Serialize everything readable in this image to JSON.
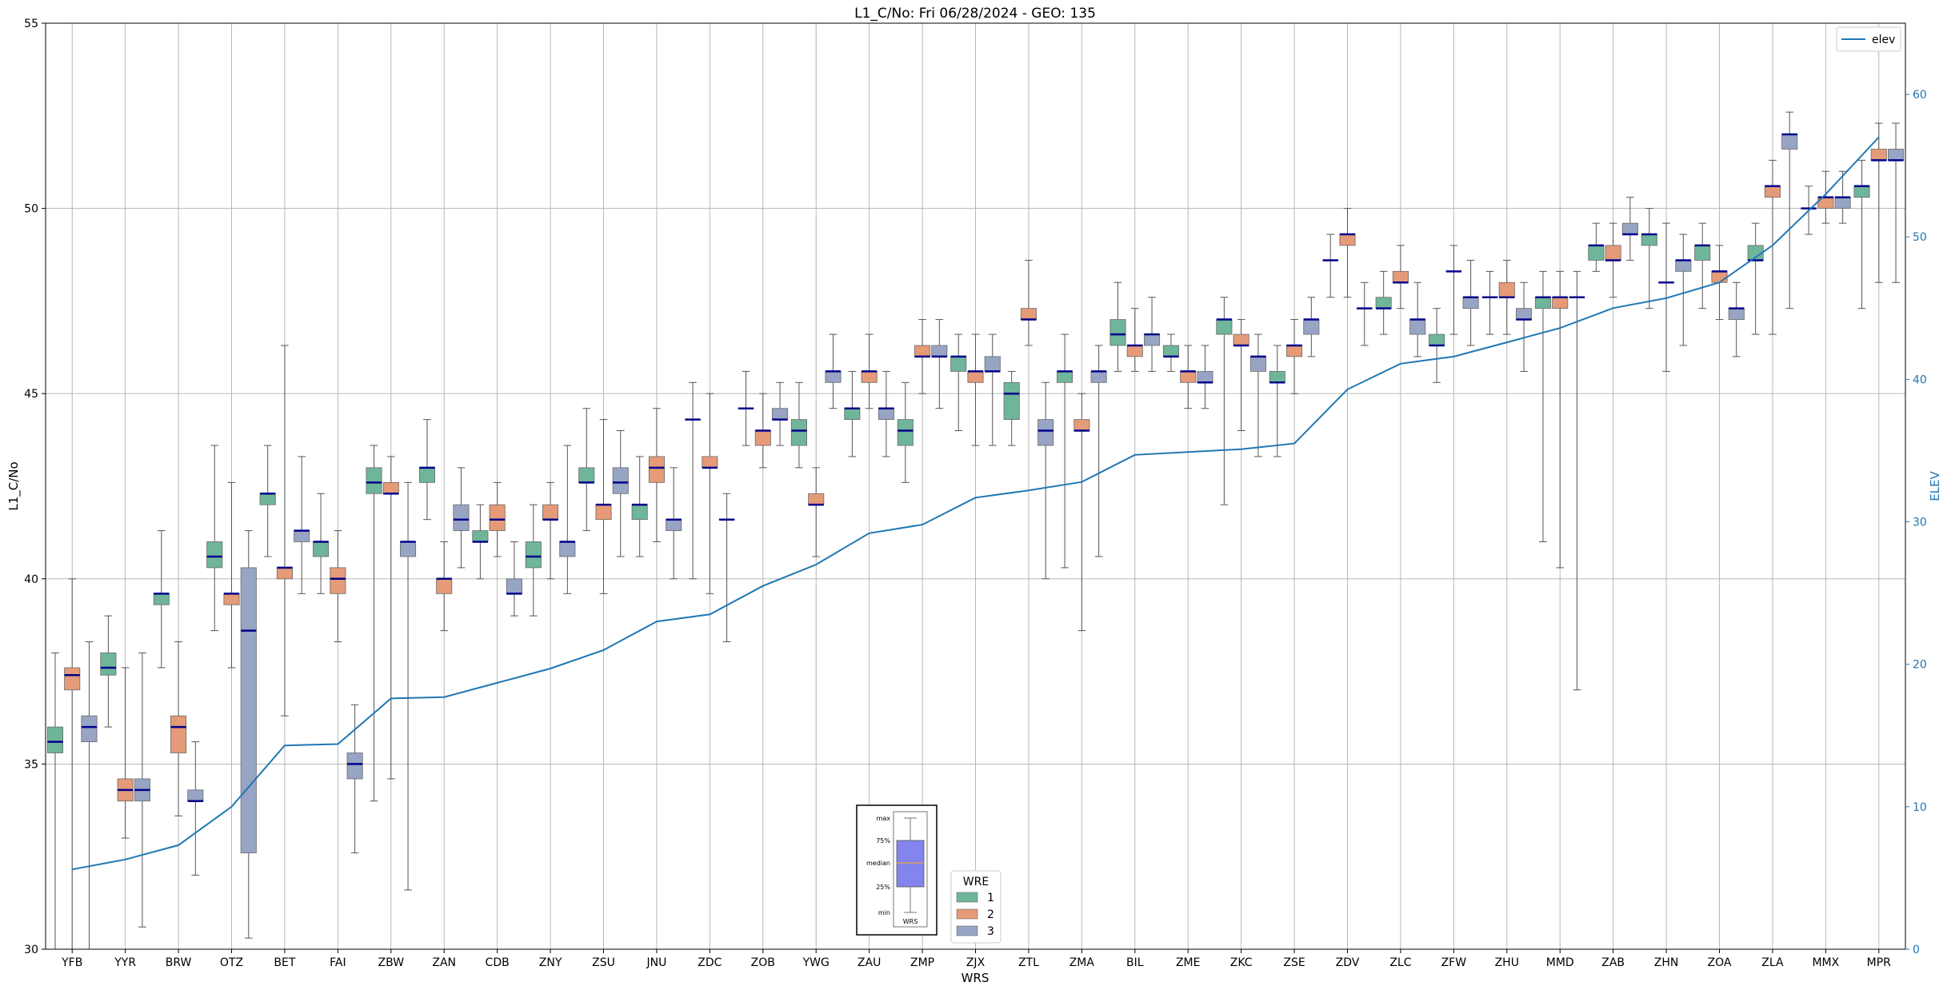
{
  "colors": {
    "wre_1": "#6fb59a",
    "wre_2": "#e59a78",
    "wre_3": "#97a4c4",
    "median": "#00008b",
    "elev_line": "#1f77b4",
    "grid": "#b0b0b0",
    "whisker": "#555555",
    "key_box": "#8484ee",
    "key_median": "#e8a040"
  },
  "chart_data": {
    "type": "box",
    "title": "L1_C/No: Fri 06/28/2024 - GEO: 135",
    "xlabel": "WRS",
    "ylabel": "L1_C/No",
    "y2label": "ELEV",
    "ylim": [
      30,
      55
    ],
    "y2lim": [
      0,
      65
    ],
    "yticks": [
      "30",
      "35",
      "40",
      "45",
      "50",
      "55"
    ],
    "y2ticks": [
      "0",
      "10",
      "20",
      "30",
      "40",
      "50",
      "60"
    ],
    "grid": true,
    "categories": [
      "YFB",
      "YYR",
      "BRW",
      "OTZ",
      "BET",
      "FAI",
      "ZBW",
      "ZAN",
      "CDB",
      "ZNY",
      "ZSU",
      "JNU",
      "ZDC",
      "ZOB",
      "YWG",
      "ZAU",
      "ZMP",
      "ZJX",
      "ZTL",
      "ZMA",
      "BIL",
      "ZME",
      "ZKC",
      "ZSE",
      "ZDV",
      "ZLC",
      "ZFW",
      "ZHU",
      "MMD",
      "ZAB",
      "ZHN",
      "ZOA",
      "ZLA",
      "MMX",
      "MPR"
    ],
    "box_legend": {
      "title": "WRE",
      "entries": [
        "1",
        "2",
        "3"
      ],
      "placement": "bottom-center"
    },
    "line_legend": {
      "entries": [
        "elev"
      ],
      "placement": "top-right"
    },
    "box_key": {
      "labels": [
        "max",
        "75%",
        "median",
        "25%",
        "min",
        "WRS"
      ]
    },
    "elev": [
      5.6,
      6.3,
      7.3,
      10.0,
      14.3,
      14.4,
      17.6,
      17.7,
      18.7,
      19.7,
      21.0,
      23.0,
      23.5,
      25.5,
      27.0,
      29.2,
      29.8,
      31.7,
      32.2,
      32.8,
      34.7,
      34.9,
      35.1,
      35.5,
      39.3,
      41.1,
      41.6,
      42.6,
      43.6,
      45.0,
      45.7,
      46.8,
      49.4,
      53.0,
      57.0
    ],
    "boxes": [
      {
        "wrs": "YFB",
        "wre": 1,
        "min": 30.0,
        "q1": 35.3,
        "median": 35.6,
        "q3": 36.0,
        "max": 38.0
      },
      {
        "wrs": "YFB",
        "wre": 2,
        "min": 30.0,
        "q1": 37.0,
        "median": 37.4,
        "q3": 37.6,
        "max": 40.0
      },
      {
        "wrs": "YFB",
        "wre": 3,
        "min": 30.0,
        "q1": 35.6,
        "median": 36.0,
        "q3": 36.3,
        "max": 38.3
      },
      {
        "wrs": "YYR",
        "wre": 1,
        "min": 36.0,
        "q1": 37.4,
        "median": 37.6,
        "q3": 38.0,
        "max": 39.0
      },
      {
        "wrs": "YYR",
        "wre": 2,
        "min": 33.0,
        "q1": 34.0,
        "median": 34.3,
        "q3": 34.6,
        "max": 37.6
      },
      {
        "wrs": "YYR",
        "wre": 3,
        "min": 30.6,
        "q1": 34.0,
        "median": 34.3,
        "q3": 34.6,
        "max": 38.0
      },
      {
        "wrs": "BRW",
        "wre": 1,
        "min": 37.6,
        "q1": 39.3,
        "median": 39.6,
        "q3": 39.6,
        "max": 41.3
      },
      {
        "wrs": "BRW",
        "wre": 2,
        "min": 33.6,
        "q1": 35.3,
        "median": 36.0,
        "q3": 36.3,
        "max": 38.3
      },
      {
        "wrs": "BRW",
        "wre": 3,
        "min": 32.0,
        "q1": 34.0,
        "median": 34.0,
        "q3": 34.3,
        "max": 35.6
      },
      {
        "wrs": "OTZ",
        "wre": 1,
        "min": 38.6,
        "q1": 40.3,
        "median": 40.6,
        "q3": 41.0,
        "max": 43.6
      },
      {
        "wrs": "OTZ",
        "wre": 2,
        "min": 37.6,
        "q1": 39.3,
        "median": 39.6,
        "q3": 39.6,
        "max": 42.6
      },
      {
        "wrs": "OTZ",
        "wre": 3,
        "min": 30.3,
        "q1": 32.6,
        "median": 38.6,
        "q3": 40.3,
        "max": 41.3
      },
      {
        "wrs": "BET",
        "wre": 1,
        "min": 40.6,
        "q1": 42.0,
        "median": 42.3,
        "q3": 42.3,
        "max": 43.6
      },
      {
        "wrs": "BET",
        "wre": 2,
        "min": 36.3,
        "q1": 40.0,
        "median": 40.3,
        "q3": 40.3,
        "max": 46.3
      },
      {
        "wrs": "BET",
        "wre": 3,
        "min": 39.6,
        "q1": 41.0,
        "median": 41.3,
        "q3": 41.3,
        "max": 43.3
      },
      {
        "wrs": "FAI",
        "wre": 1,
        "min": 39.6,
        "q1": 40.6,
        "median": 41.0,
        "q3": 41.0,
        "max": 42.3
      },
      {
        "wrs": "FAI",
        "wre": 2,
        "min": 38.3,
        "q1": 39.6,
        "median": 40.0,
        "q3": 40.3,
        "max": 41.3
      },
      {
        "wrs": "FAI",
        "wre": 3,
        "min": 32.6,
        "q1": 34.6,
        "median": 35.0,
        "q3": 35.3,
        "max": 36.6
      },
      {
        "wrs": "ZBW",
        "wre": 1,
        "min": 34.0,
        "q1": 42.3,
        "median": 42.6,
        "q3": 43.0,
        "max": 43.6
      },
      {
        "wrs": "ZBW",
        "wre": 2,
        "min": 34.6,
        "q1": 42.3,
        "median": 42.3,
        "q3": 42.6,
        "max": 43.3
      },
      {
        "wrs": "ZBW",
        "wre": 3,
        "min": 31.6,
        "q1": 40.6,
        "median": 41.0,
        "q3": 41.0,
        "max": 42.6
      },
      {
        "wrs": "ZAN",
        "wre": 1,
        "min": 41.6,
        "q1": 42.6,
        "median": 43.0,
        "q3": 43.0,
        "max": 44.3
      },
      {
        "wrs": "ZAN",
        "wre": 2,
        "min": 38.6,
        "q1": 39.6,
        "median": 40.0,
        "q3": 40.0,
        "max": 41.0
      },
      {
        "wrs": "ZAN",
        "wre": 3,
        "min": 40.3,
        "q1": 41.3,
        "median": 41.6,
        "q3": 42.0,
        "max": 43.0
      },
      {
        "wrs": "CDB",
        "wre": 1,
        "min": 40.0,
        "q1": 41.0,
        "median": 41.0,
        "q3": 41.3,
        "max": 42.0
      },
      {
        "wrs": "CDB",
        "wre": 2,
        "min": 40.6,
        "q1": 41.3,
        "median": 41.6,
        "q3": 42.0,
        "max": 42.6
      },
      {
        "wrs": "CDB",
        "wre": 3,
        "min": 39.0,
        "q1": 39.6,
        "median": 39.6,
        "q3": 40.0,
        "max": 41.0
      },
      {
        "wrs": "ZNY",
        "wre": 1,
        "min": 39.0,
        "q1": 40.3,
        "median": 40.6,
        "q3": 41.0,
        "max": 42.0
      },
      {
        "wrs": "ZNY",
        "wre": 2,
        "min": 40.0,
        "q1": 41.6,
        "median": 41.6,
        "q3": 42.0,
        "max": 42.6
      },
      {
        "wrs": "ZNY",
        "wre": 3,
        "min": 39.6,
        "q1": 40.6,
        "median": 41.0,
        "q3": 41.0,
        "max": 43.6
      },
      {
        "wrs": "ZSU",
        "wre": 1,
        "min": 41.3,
        "q1": 42.6,
        "median": 42.6,
        "q3": 43.0,
        "max": 44.6
      },
      {
        "wrs": "ZSU",
        "wre": 2,
        "min": 39.6,
        "q1": 41.6,
        "median": 42.0,
        "q3": 42.0,
        "max": 44.3
      },
      {
        "wrs": "ZSU",
        "wre": 3,
        "min": 40.6,
        "q1": 42.3,
        "median": 42.6,
        "q3": 43.0,
        "max": 44.0
      },
      {
        "wrs": "JNU",
        "wre": 1,
        "min": 40.6,
        "q1": 41.6,
        "median": 42.0,
        "q3": 42.0,
        "max": 43.3
      },
      {
        "wrs": "JNU",
        "wre": 2,
        "min": 41.0,
        "q1": 42.6,
        "median": 43.0,
        "q3": 43.3,
        "max": 44.6
      },
      {
        "wrs": "JNU",
        "wre": 3,
        "min": 40.0,
        "q1": 41.3,
        "median": 41.6,
        "q3": 41.6,
        "max": 43.0
      },
      {
        "wrs": "ZDC",
        "wre": 1,
        "min": 40.0,
        "q1": 44.3,
        "median": 44.3,
        "q3": 44.3,
        "max": 45.3
      },
      {
        "wrs": "ZDC",
        "wre": 2,
        "min": 39.6,
        "q1": 43.0,
        "median": 43.0,
        "q3": 43.3,
        "max": 45.0
      },
      {
        "wrs": "ZDC",
        "wre": 3,
        "min": 38.3,
        "q1": 41.6,
        "median": 41.6,
        "q3": 41.6,
        "max": 42.3
      },
      {
        "wrs": "ZOB",
        "wre": 1,
        "min": 43.6,
        "q1": 44.6,
        "median": 44.6,
        "q3": 44.6,
        "max": 45.6
      },
      {
        "wrs": "ZOB",
        "wre": 2,
        "min": 43.0,
        "q1": 43.6,
        "median": 44.0,
        "q3": 44.0,
        "max": 45.0
      },
      {
        "wrs": "ZOB",
        "wre": 3,
        "min": 43.6,
        "q1": 44.3,
        "median": 44.3,
        "q3": 44.6,
        "max": 45.3
      },
      {
        "wrs": "YWG",
        "wre": 1,
        "min": 43.0,
        "q1": 43.6,
        "median": 44.0,
        "q3": 44.3,
        "max": 45.3
      },
      {
        "wrs": "YWG",
        "wre": 2,
        "min": 40.6,
        "q1": 42.0,
        "median": 42.0,
        "q3": 42.3,
        "max": 43.0
      },
      {
        "wrs": "YWG",
        "wre": 3,
        "min": 44.6,
        "q1": 45.3,
        "median": 45.6,
        "q3": 45.6,
        "max": 46.6
      },
      {
        "wrs": "ZAU",
        "wre": 1,
        "min": 43.3,
        "q1": 44.3,
        "median": 44.6,
        "q3": 44.6,
        "max": 45.6
      },
      {
        "wrs": "ZAU",
        "wre": 2,
        "min": 44.6,
        "q1": 45.3,
        "median": 45.6,
        "q3": 45.6,
        "max": 46.6
      },
      {
        "wrs": "ZAU",
        "wre": 3,
        "min": 43.3,
        "q1": 44.3,
        "median": 44.6,
        "q3": 44.6,
        "max": 45.6
      },
      {
        "wrs": "ZMP",
        "wre": 1,
        "min": 42.6,
        "q1": 43.6,
        "median": 44.0,
        "q3": 44.3,
        "max": 45.3
      },
      {
        "wrs": "ZMP",
        "wre": 2,
        "min": 45.0,
        "q1": 46.0,
        "median": 46.0,
        "q3": 46.3,
        "max": 47.0
      },
      {
        "wrs": "ZMP",
        "wre": 3,
        "min": 44.6,
        "q1": 46.0,
        "median": 46.0,
        "q3": 46.3,
        "max": 47.0
      },
      {
        "wrs": "ZJX",
        "wre": 1,
        "min": 44.0,
        "q1": 45.6,
        "median": 46.0,
        "q3": 46.0,
        "max": 46.6
      },
      {
        "wrs": "ZJX",
        "wre": 2,
        "min": 43.6,
        "q1": 45.3,
        "median": 45.6,
        "q3": 45.6,
        "max": 46.6
      },
      {
        "wrs": "ZJX",
        "wre": 3,
        "min": 43.6,
        "q1": 45.6,
        "median": 45.6,
        "q3": 46.0,
        "max": 46.6
      },
      {
        "wrs": "ZTL",
        "wre": 1,
        "min": 43.6,
        "q1": 44.3,
        "median": 45.0,
        "q3": 45.3,
        "max": 45.6
      },
      {
        "wrs": "ZTL",
        "wre": 2,
        "min": 46.3,
        "q1": 47.0,
        "median": 47.0,
        "q3": 47.3,
        "max": 48.6
      },
      {
        "wrs": "ZTL",
        "wre": 3,
        "min": 40.0,
        "q1": 43.6,
        "median": 44.0,
        "q3": 44.3,
        "max": 45.3
      },
      {
        "wrs": "ZMA",
        "wre": 1,
        "min": 40.3,
        "q1": 45.3,
        "median": 45.6,
        "q3": 45.6,
        "max": 46.6
      },
      {
        "wrs": "ZMA",
        "wre": 2,
        "min": 38.6,
        "q1": 44.0,
        "median": 44.0,
        "q3": 44.3,
        "max": 45.0
      },
      {
        "wrs": "ZMA",
        "wre": 3,
        "min": 40.6,
        "q1": 45.3,
        "median": 45.6,
        "q3": 45.6,
        "max": 46.3
      },
      {
        "wrs": "BIL",
        "wre": 1,
        "min": 45.6,
        "q1": 46.3,
        "median": 46.6,
        "q3": 47.0,
        "max": 48.0
      },
      {
        "wrs": "BIL",
        "wre": 2,
        "min": 45.6,
        "q1": 46.0,
        "median": 46.3,
        "q3": 46.3,
        "max": 47.3
      },
      {
        "wrs": "BIL",
        "wre": 3,
        "min": 45.6,
        "q1": 46.3,
        "median": 46.6,
        "q3": 46.6,
        "max": 47.6
      },
      {
        "wrs": "ZME",
        "wre": 1,
        "min": 45.6,
        "q1": 46.0,
        "median": 46.0,
        "q3": 46.3,
        "max": 46.6
      },
      {
        "wrs": "ZME",
        "wre": 2,
        "min": 44.6,
        "q1": 45.3,
        "median": 45.6,
        "q3": 45.6,
        "max": 46.3
      },
      {
        "wrs": "ZME",
        "wre": 3,
        "min": 44.6,
        "q1": 45.3,
        "median": 45.3,
        "q3": 45.6,
        "max": 46.3
      },
      {
        "wrs": "ZKC",
        "wre": 1,
        "min": 42.0,
        "q1": 46.6,
        "median": 47.0,
        "q3": 47.0,
        "max": 47.6
      },
      {
        "wrs": "ZKC",
        "wre": 2,
        "min": 44.0,
        "q1": 46.3,
        "median": 46.3,
        "q3": 46.6,
        "max": 47.0
      },
      {
        "wrs": "ZKC",
        "wre": 3,
        "min": 43.3,
        "q1": 45.6,
        "median": 46.0,
        "q3": 46.0,
        "max": 46.6
      },
      {
        "wrs": "ZSE",
        "wre": 1,
        "min": 43.3,
        "q1": 45.3,
        "median": 45.3,
        "q3": 45.6,
        "max": 46.3
      },
      {
        "wrs": "ZSE",
        "wre": 2,
        "min": 45.0,
        "q1": 46.0,
        "median": 46.3,
        "q3": 46.3,
        "max": 47.0
      },
      {
        "wrs": "ZSE",
        "wre": 3,
        "min": 46.0,
        "q1": 46.6,
        "median": 47.0,
        "q3": 47.0,
        "max": 47.6
      },
      {
        "wrs": "ZDV",
        "wre": 1,
        "min": 47.6,
        "q1": 48.6,
        "median": 48.6,
        "q3": 48.6,
        "max": 49.3
      },
      {
        "wrs": "ZDV",
        "wre": 2,
        "min": 47.6,
        "q1": 49.0,
        "median": 49.3,
        "q3": 49.3,
        "max": 50.0
      },
      {
        "wrs": "ZDV",
        "wre": 3,
        "min": 46.3,
        "q1": 47.3,
        "median": 47.3,
        "q3": 47.3,
        "max": 48.0
      },
      {
        "wrs": "ZLC",
        "wre": 1,
        "min": 46.6,
        "q1": 47.3,
        "median": 47.3,
        "q3": 47.6,
        "max": 48.3
      },
      {
        "wrs": "ZLC",
        "wre": 2,
        "min": 47.3,
        "q1": 48.0,
        "median": 48.0,
        "q3": 48.3,
        "max": 49.0
      },
      {
        "wrs": "ZLC",
        "wre": 3,
        "min": 46.0,
        "q1": 46.6,
        "median": 47.0,
        "q3": 47.0,
        "max": 48.0
      },
      {
        "wrs": "ZFW",
        "wre": 1,
        "min": 45.3,
        "q1": 46.3,
        "median": 46.3,
        "q3": 46.6,
        "max": 47.3
      },
      {
        "wrs": "ZFW",
        "wre": 2,
        "min": 46.6,
        "q1": 48.3,
        "median": 48.3,
        "q3": 48.3,
        "max": 49.0
      },
      {
        "wrs": "ZFW",
        "wre": 3,
        "min": 46.3,
        "q1": 47.3,
        "median": 47.6,
        "q3": 47.6,
        "max": 48.6
      },
      {
        "wrs": "ZHU",
        "wre": 1,
        "min": 46.6,
        "q1": 47.6,
        "median": 47.6,
        "q3": 47.6,
        "max": 48.3
      },
      {
        "wrs": "ZHU",
        "wre": 2,
        "min": 46.6,
        "q1": 47.6,
        "median": 47.6,
        "q3": 48.0,
        "max": 48.6
      },
      {
        "wrs": "ZHU",
        "wre": 3,
        "min": 45.6,
        "q1": 47.0,
        "median": 47.0,
        "q3": 47.3,
        "max": 48.0
      },
      {
        "wrs": "MMD",
        "wre": 1,
        "min": 41.0,
        "q1": 47.3,
        "median": 47.6,
        "q3": 47.6,
        "max": 48.3
      },
      {
        "wrs": "MMD",
        "wre": 2,
        "min": 40.3,
        "q1": 47.3,
        "median": 47.6,
        "q3": 47.6,
        "max": 48.3
      },
      {
        "wrs": "MMD",
        "wre": 3,
        "min": 37.0,
        "q1": 47.6,
        "median": 47.6,
        "q3": 47.6,
        "max": 48.3
      },
      {
        "wrs": "ZAB",
        "wre": 1,
        "min": 48.3,
        "q1": 48.6,
        "median": 49.0,
        "q3": 49.0,
        "max": 49.6
      },
      {
        "wrs": "ZAB",
        "wre": 2,
        "min": 47.6,
        "q1": 48.6,
        "median": 48.6,
        "q3": 49.0,
        "max": 49.6
      },
      {
        "wrs": "ZAB",
        "wre": 3,
        "min": 48.6,
        "q1": 49.3,
        "median": 49.3,
        "q3": 49.6,
        "max": 50.3
      },
      {
        "wrs": "ZHN",
        "wre": 1,
        "min": 47.3,
        "q1": 49.0,
        "median": 49.3,
        "q3": 49.3,
        "max": 50.0
      },
      {
        "wrs": "ZHN",
        "wre": 2,
        "min": 45.6,
        "q1": 48.0,
        "median": 48.0,
        "q3": 48.0,
        "max": 49.6
      },
      {
        "wrs": "ZHN",
        "wre": 3,
        "min": 46.3,
        "q1": 48.3,
        "median": 48.6,
        "q3": 48.6,
        "max": 49.3
      },
      {
        "wrs": "ZOA",
        "wre": 1,
        "min": 47.3,
        "q1": 48.6,
        "median": 49.0,
        "q3": 49.0,
        "max": 49.6
      },
      {
        "wrs": "ZOA",
        "wre": 2,
        "min": 47.0,
        "q1": 48.0,
        "median": 48.3,
        "q3": 48.3,
        "max": 49.0
      },
      {
        "wrs": "ZOA",
        "wre": 3,
        "min": 46.0,
        "q1": 47.0,
        "median": 47.3,
        "q3": 47.3,
        "max": 48.0
      },
      {
        "wrs": "ZLA",
        "wre": 1,
        "min": 46.6,
        "q1": 48.6,
        "median": 48.6,
        "q3": 49.0,
        "max": 49.6
      },
      {
        "wrs": "ZLA",
        "wre": 2,
        "min": 46.6,
        "q1": 50.3,
        "median": 50.6,
        "q3": 50.6,
        "max": 51.3
      },
      {
        "wrs": "ZLA",
        "wre": 3,
        "min": 47.3,
        "q1": 51.6,
        "median": 52.0,
        "q3": 52.0,
        "max": 52.6
      },
      {
        "wrs": "MMX",
        "wre": 1,
        "min": 49.3,
        "q1": 50.0,
        "median": 50.0,
        "q3": 50.0,
        "max": 50.6
      },
      {
        "wrs": "MMX",
        "wre": 2,
        "min": 49.6,
        "q1": 50.0,
        "median": 50.3,
        "q3": 50.3,
        "max": 51.0
      },
      {
        "wrs": "MMX",
        "wre": 3,
        "min": 49.6,
        "q1": 50.0,
        "median": 50.3,
        "q3": 50.3,
        "max": 51.0
      },
      {
        "wrs": "MPR",
        "wre": 1,
        "min": 47.3,
        "q1": 50.3,
        "median": 50.6,
        "q3": 50.6,
        "max": 51.3
      },
      {
        "wrs": "MPR",
        "wre": 2,
        "min": 48.0,
        "q1": 51.3,
        "median": 51.3,
        "q3": 51.6,
        "max": 52.3
      },
      {
        "wrs": "MPR",
        "wre": 3,
        "min": 48.0,
        "q1": 51.3,
        "median": 51.3,
        "q3": 51.6,
        "max": 52.3
      }
    ]
  }
}
